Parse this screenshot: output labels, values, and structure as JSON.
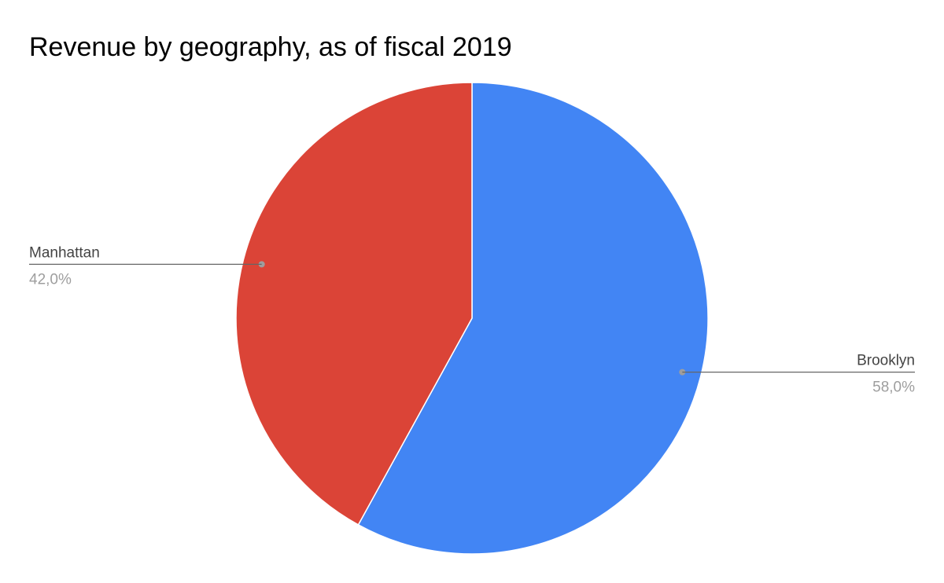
{
  "chart_data": {
    "type": "pie",
    "title": "Revenue by geography, as of fiscal 2019",
    "slices": [
      {
        "label": "Brooklyn",
        "value": 58.0,
        "display": "58,0%",
        "color": "#4285F4"
      },
      {
        "label": "Manhattan",
        "value": 42.0,
        "display": "42,0%",
        "color": "#DB4437"
      }
    ],
    "start_angle_deg": 0,
    "direction": "clockwise",
    "legend": "none",
    "label_style": "outside-with-leader-lines"
  }
}
